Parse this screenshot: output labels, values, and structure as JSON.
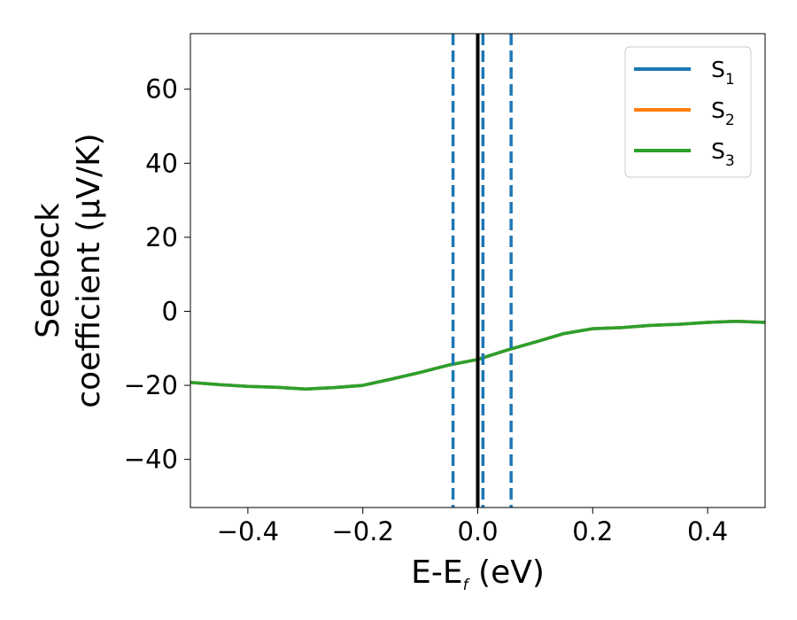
{
  "chart_data": {
    "type": "line",
    "xlabel": {
      "main": "E-E",
      "sub": "f",
      "tail": " (eV)"
    },
    "ylabel": {
      "line1": "Seebeck",
      "line2": "coefficient  (μV/K)"
    },
    "xlim": [
      -0.5,
      0.5
    ],
    "ylim": [
      -53,
      75
    ],
    "xticks": [
      -0.4,
      -0.2,
      0.0,
      0.2,
      0.4
    ],
    "xtick_labels": [
      "−0.4",
      "−0.2",
      "0.0",
      "0.2",
      "0.4"
    ],
    "yticks": [
      -40,
      -20,
      0,
      20,
      40,
      60
    ],
    "ytick_labels": [
      "−40",
      "−20",
      "0",
      "20",
      "40",
      "60"
    ],
    "grid": false,
    "legend_position": "top-right",
    "vertical_lines": [
      {
        "x": -0.043,
        "style": "dashed",
        "color": "#1f77b4"
      },
      {
        "x": 0.0,
        "style": "solid",
        "color": "#000000"
      },
      {
        "x": 0.009,
        "style": "dashed",
        "color": "#1f77b4"
      },
      {
        "x": 0.058,
        "style": "dashed",
        "color": "#1f77b4"
      }
    ],
    "x": [
      -0.5,
      -0.45,
      -0.4,
      -0.35,
      -0.3,
      -0.25,
      -0.2,
      -0.15,
      -0.1,
      -0.05,
      0.0,
      0.05,
      0.1,
      0.15,
      0.2,
      0.25,
      0.3,
      0.35,
      0.4,
      0.45,
      0.5
    ],
    "series": [
      {
        "name": "S",
        "sub": "1",
        "color": "#1f77b4",
        "values": [
          -19.2,
          -19.8,
          -20.3,
          -20.5,
          -21.0,
          -20.6,
          -20.0,
          -18.3,
          -16.5,
          -14.5,
          -13.0,
          -10.5,
          -8.3,
          -6.0,
          -4.7,
          -4.4,
          -3.8,
          -3.5,
          -3.0,
          -2.7,
          -3.0
        ]
      },
      {
        "name": "S",
        "sub": "2",
        "color": "#ff7f0e",
        "values": [
          -19.2,
          -19.8,
          -20.3,
          -20.5,
          -21.0,
          -20.6,
          -20.0,
          -18.3,
          -16.5,
          -14.5,
          -13.0,
          -10.5,
          -8.3,
          -6.0,
          -4.7,
          -4.4,
          -3.8,
          -3.5,
          -3.0,
          -2.7,
          -3.0
        ]
      },
      {
        "name": "S",
        "sub": "3",
        "color": "#2ca02c",
        "values": [
          -19.2,
          -19.8,
          -20.3,
          -20.5,
          -21.0,
          -20.6,
          -20.0,
          -18.3,
          -16.5,
          -14.5,
          -13.0,
          -10.5,
          -8.3,
          -6.0,
          -4.7,
          -4.4,
          -3.8,
          -3.5,
          -3.0,
          -2.7,
          -3.0
        ]
      }
    ]
  }
}
